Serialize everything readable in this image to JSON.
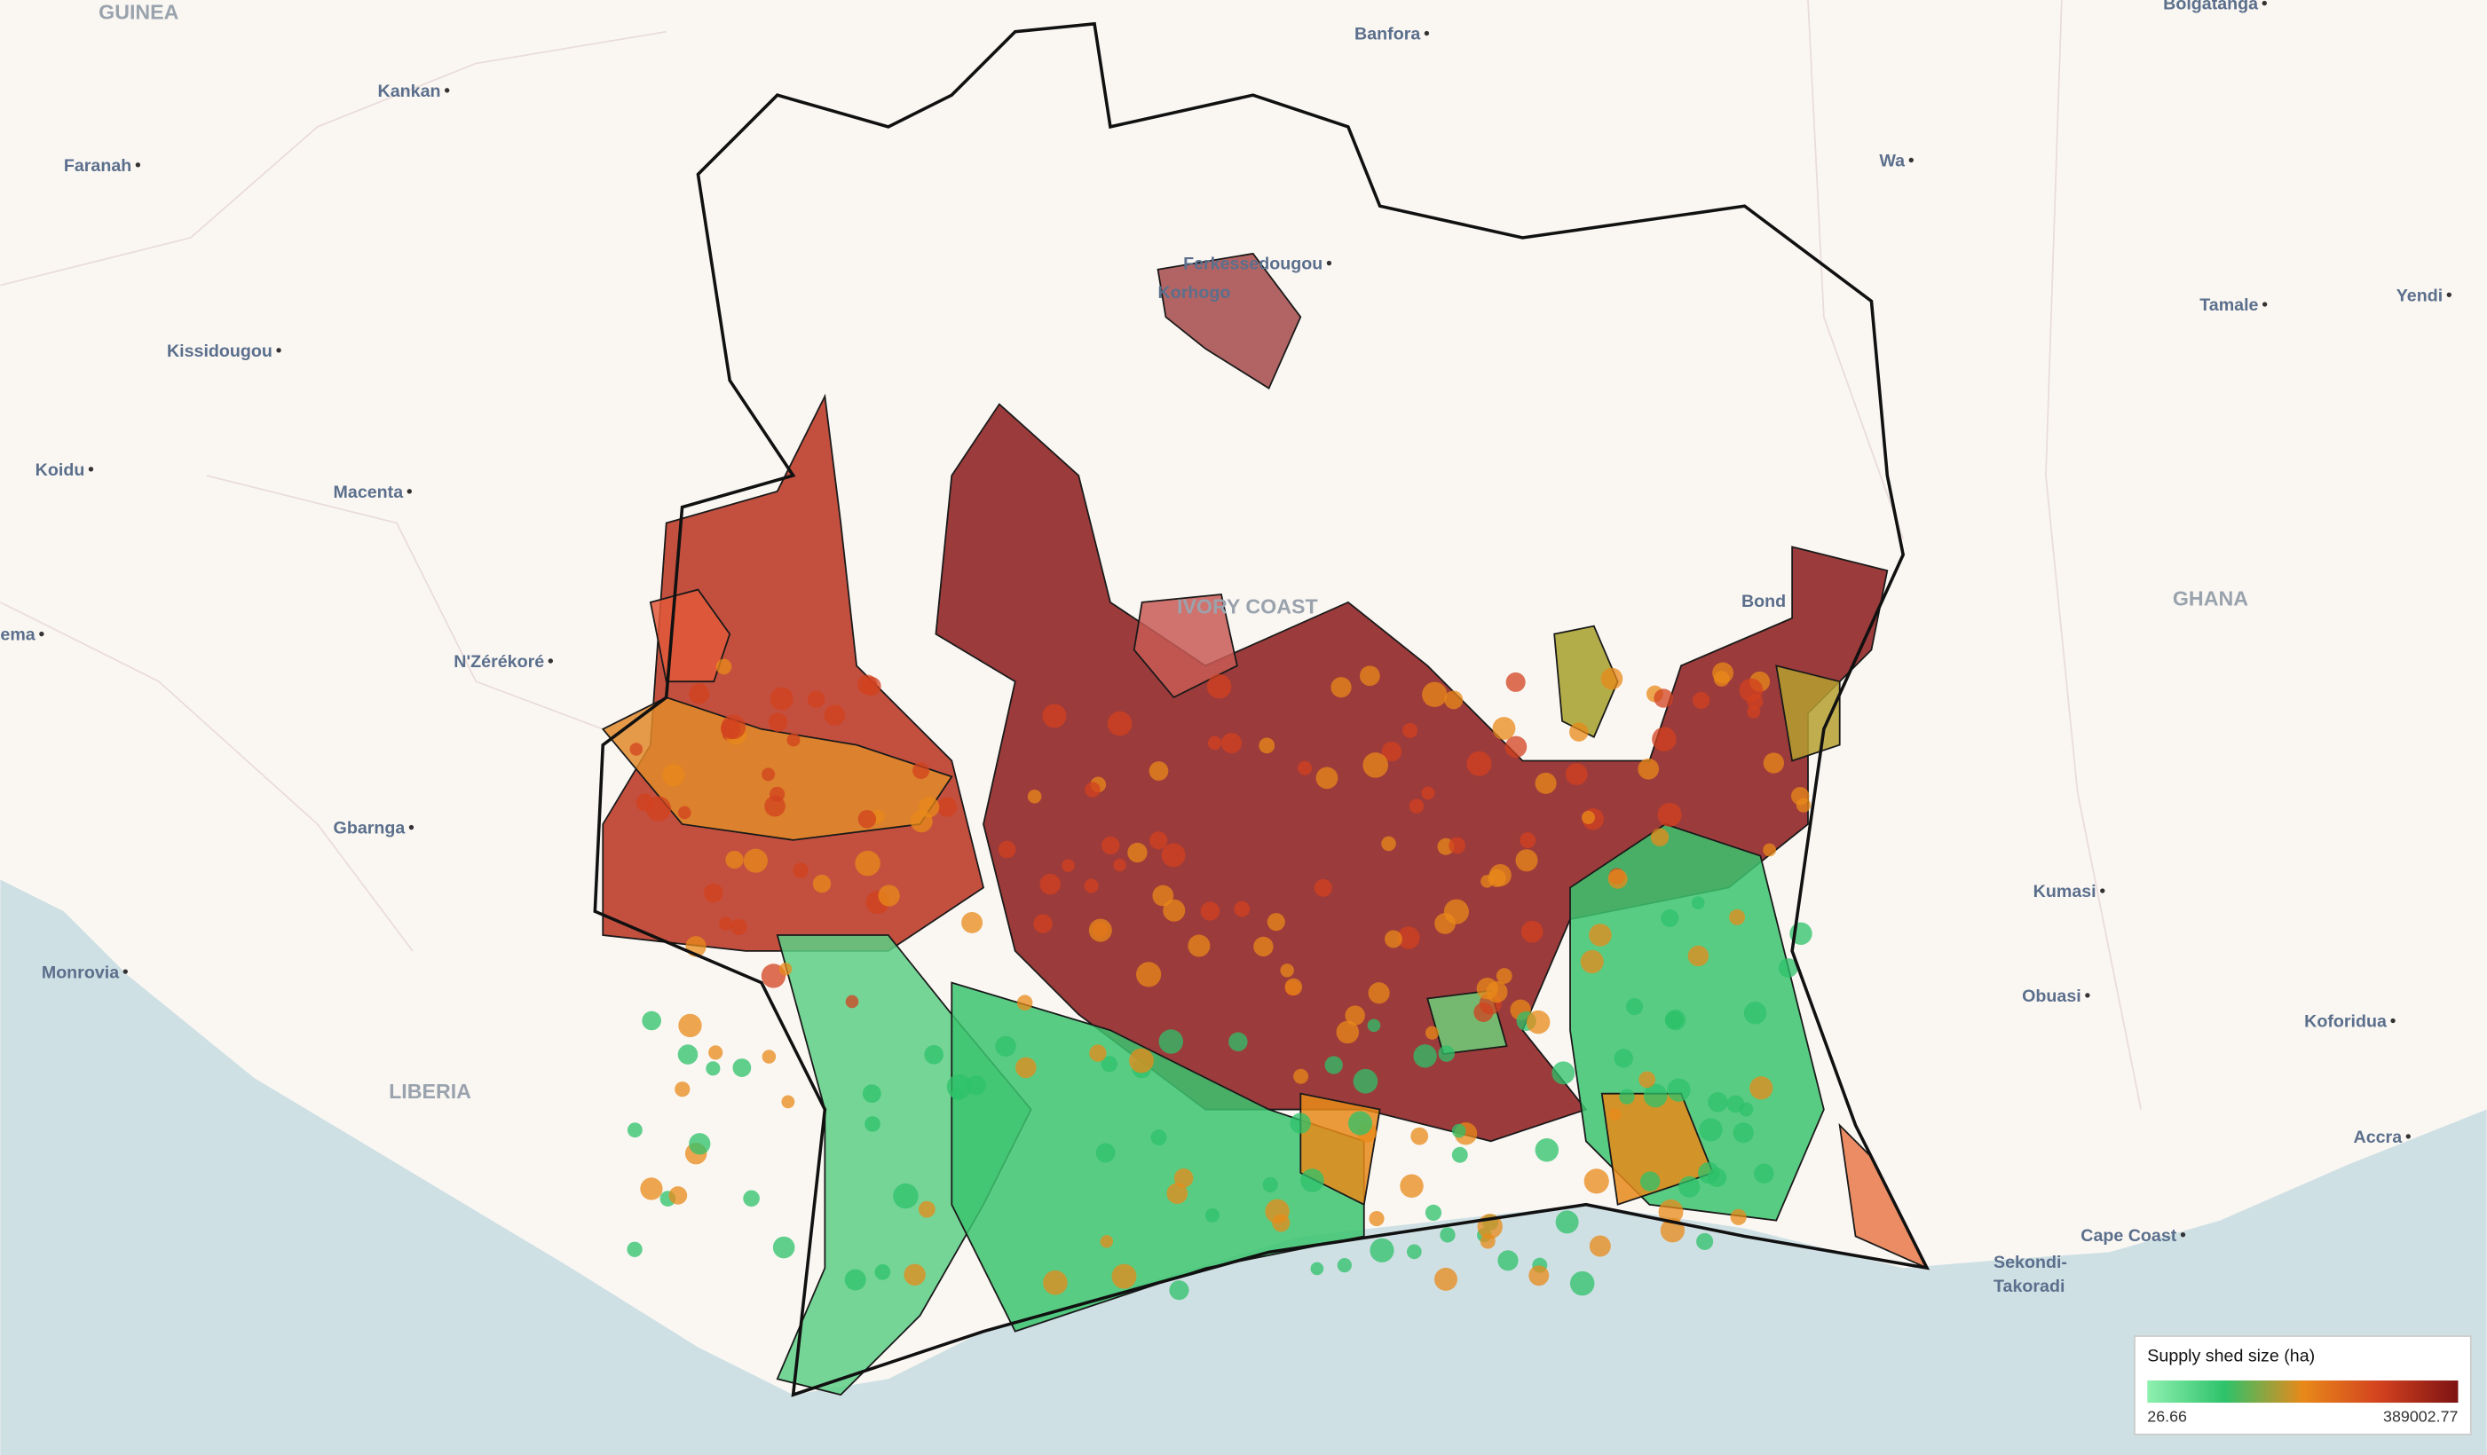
{
  "map": {
    "places": [
      "GUINEA",
      "Kankan",
      "Faranah",
      "Kissidougou",
      "Koidu",
      "Macenta",
      "N'Zérékoré",
      "ema",
      "Gbarnga",
      "Monrovia",
      "LIBERIA",
      "Banfora",
      "Bolgatanga",
      "Wa",
      "Tamale",
      "Yendi",
      "Ferkessedougou",
      "Korhogo",
      "IVORY COAST",
      "Bond",
      "GHANA",
      "Kumasi",
      "Obuasi",
      "Koforidua",
      "Accra",
      "Cape Coast",
      "Sekondi-",
      "Takoradi"
    ],
    "legend": {
      "title": "Supply shed size (ha)",
      "min": 26.66,
      "max": 389002.77,
      "colors": [
        "#8ef0b0",
        "#2ec26a",
        "#e8891a",
        "#d2411f",
        "#7d1313"
      ]
    }
  }
}
